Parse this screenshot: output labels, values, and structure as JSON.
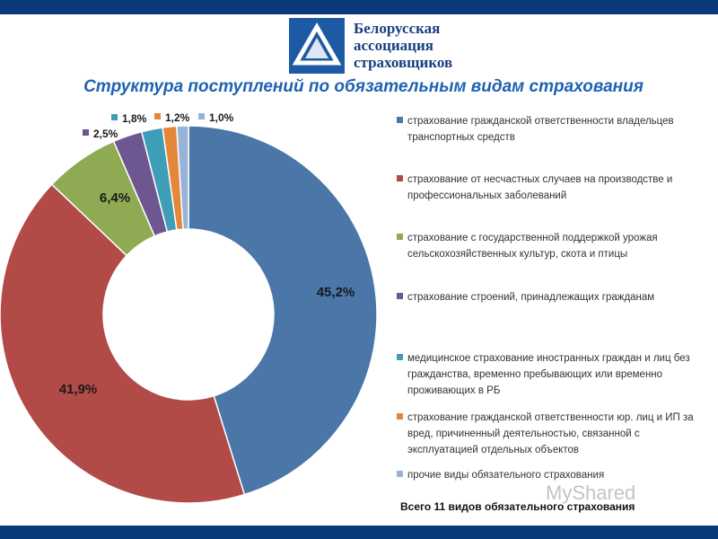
{
  "logo": {
    "name_lines": [
      "Белорусская",
      "ассоциация",
      "страховщиков"
    ],
    "colors": {
      "mark_bg": "#1d5aa5",
      "text": "#173f80"
    }
  },
  "title": "Структура поступлений по обязательным видам страхования",
  "chart_data": {
    "type": "pie",
    "donut": true,
    "title": "Структура поступлений по обязательным видам страхования",
    "categories": [
      "страхование гражданской ответственности владельцев транспортных средств",
      "страхование от несчастных случаев на производстве и профессиональных заболеваний",
      "страхование с государственной поддержкой урожая сельскохозяйственных культур, скота и птицы",
      "страхование строений, принадлежащих гражданам",
      "медицинское страхование иностранных граждан и лиц без гражданства, временно пребывающих или временно проживающих в РБ",
      "страхование гражданской ответственности юр. лиц и ИП за вред, причиненный деятельностью, связанной с эксплуатацией отдельных объектов",
      "прочие виды обязательного страхования"
    ],
    "values": [
      45.2,
      41.9,
      6.4,
      2.5,
      1.8,
      1.2,
      1.0
    ],
    "labels": [
      "45,2%",
      "41,9%",
      "6,4%",
      "2,5%",
      "1,8%",
      "1,2%",
      "1,0%"
    ],
    "colors": [
      "#4a76a8",
      "#b24a47",
      "#8eaa52",
      "#6e5690",
      "#3e9db7",
      "#e4873a",
      "#97b3d8"
    ],
    "legend_position": "right"
  },
  "total_text": "Всего 11 видов обязательного страхования",
  "watermark": "MyShared",
  "colors": {
    "bars": "#0a3a7a",
    "title": "#1f62b3"
  }
}
